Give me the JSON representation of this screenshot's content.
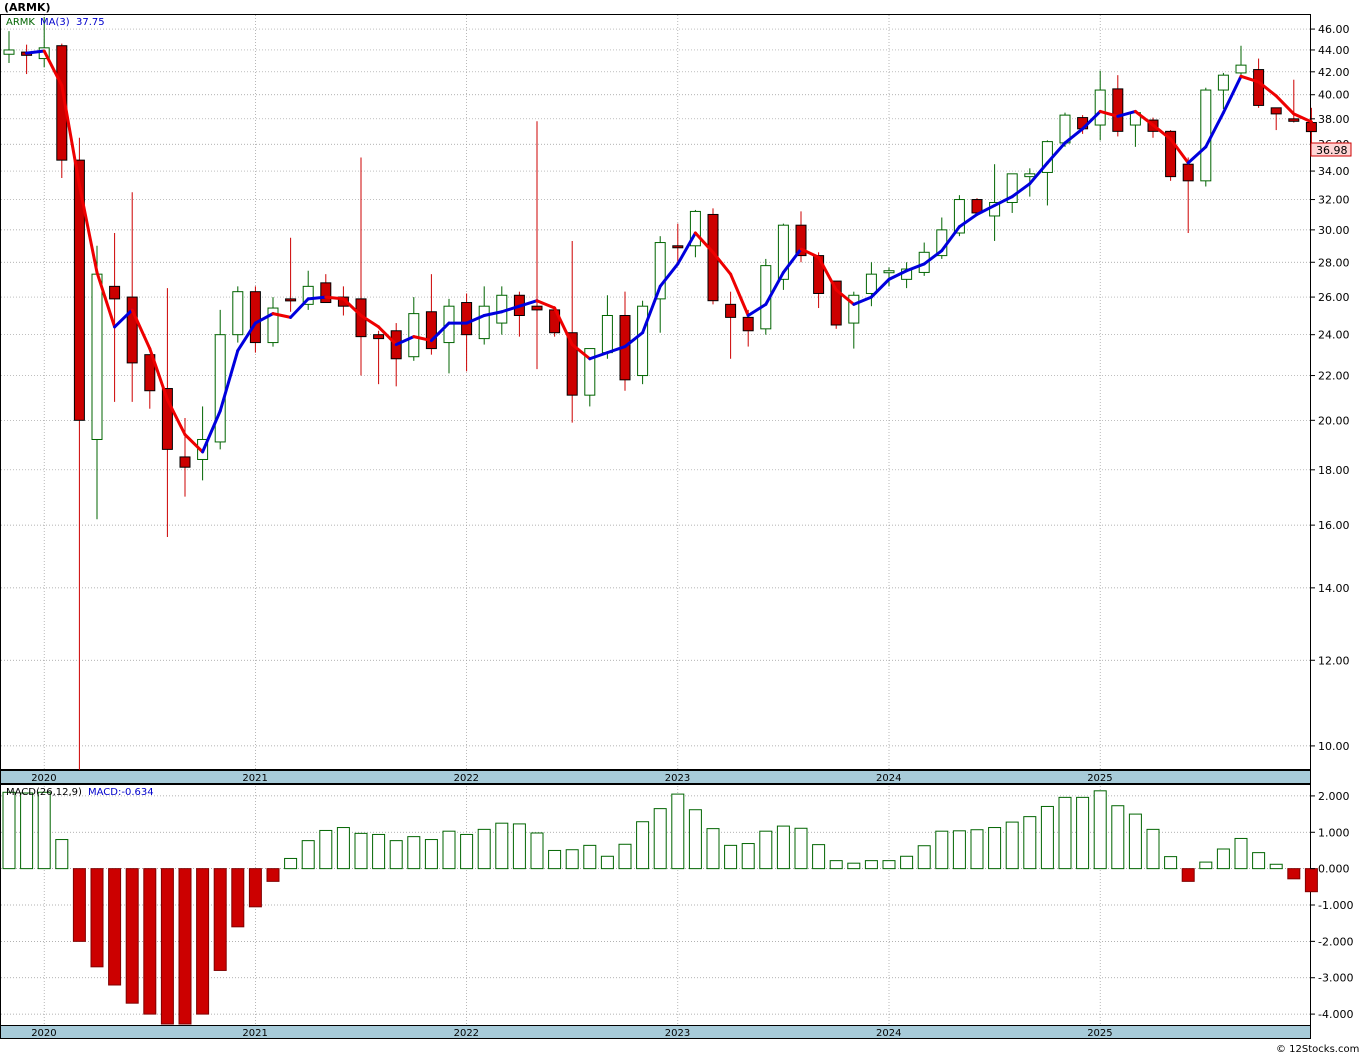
{
  "header": {
    "symbol_label": "(ARMK)",
    "legend_symbol": "ARMK",
    "legend_ma_label": "MA(3)",
    "legend_ma_value": "37.75",
    "last_price_tag": "36.98"
  },
  "macd_panel": {
    "label": "MACD(26,12,9)",
    "value_label": "MACD:-0.634"
  },
  "footer": {
    "credit": "© 12Stocks.com"
  },
  "colors": {
    "up": "#006400",
    "down": "#cc0000",
    "ma_up": "#0000dd",
    "ma_down": "#ee0000",
    "axis_band": "#a7cbd9",
    "grid": "#999999"
  },
  "chart_data": [
    {
      "type": "candlestick",
      "title": "ARMK",
      "scale": "log",
      "period": "monthly",
      "ylim": [
        9.5,
        47.5
      ],
      "y_ticks": [
        10,
        12,
        14,
        16,
        18,
        20,
        22,
        24,
        26,
        28,
        30,
        32,
        34,
        36,
        38,
        40,
        42,
        44,
        46
      ],
      "y_tick_labels": [
        "10.00",
        "12.00",
        "14.00",
        "16.00",
        "18.00",
        "20.00",
        "22.00",
        "24.00",
        "26.00",
        "28.00",
        "30.00",
        "32.00",
        "34.00",
        "36.00",
        "38.00",
        "40.00",
        "42.00",
        "44.00",
        "46.00"
      ],
      "x_labels": [
        "2020",
        "2021",
        "2022",
        "2023",
        "2024",
        "2025"
      ],
      "grid": true,
      "series": [
        {
          "name": "ARMK",
          "ohlc": [
            [
              43.6,
              45.8,
              42.8,
              44.0
            ],
            [
              43.8,
              44.5,
              41.8,
              43.5
            ],
            [
              43.2,
              47.2,
              42.4,
              44.2
            ],
            [
              44.4,
              44.6,
              33.5,
              34.8
            ],
            [
              34.8,
              36.5,
              9.5,
              20.0
            ],
            [
              19.2,
              29.0,
              16.2,
              27.3
            ],
            [
              26.6,
              29.8,
              20.8,
              25.9
            ],
            [
              26.0,
              32.5,
              20.8,
              22.6
            ],
            [
              23.0,
              23.0,
              20.5,
              21.3
            ],
            [
              21.4,
              26.5,
              15.6,
              18.8
            ],
            [
              18.5,
              20.1,
              17.0,
              18.1
            ],
            [
              18.4,
              20.6,
              17.6,
              19.2
            ],
            [
              19.1,
              25.3,
              18.8,
              24.0
            ],
            [
              24.0,
              26.6,
              23.6,
              26.3
            ],
            [
              26.3,
              26.6,
              23.1,
              23.6
            ],
            [
              23.6,
              26.0,
              23.4,
              25.4
            ],
            [
              25.9,
              29.5,
              25.2,
              25.8
            ],
            [
              25.6,
              27.5,
              25.3,
              26.6
            ],
            [
              26.8,
              27.3,
              25.7,
              25.7
            ],
            [
              26.0,
              26.6,
              25.0,
              25.5
            ],
            [
              25.9,
              35.0,
              22.0,
              23.9
            ],
            [
              24.0,
              24.2,
              21.6,
              23.8
            ],
            [
              24.2,
              24.6,
              21.5,
              22.8
            ],
            [
              22.9,
              26.0,
              22.7,
              25.1
            ],
            [
              25.2,
              27.3,
              23.0,
              23.3
            ],
            [
              23.6,
              25.9,
              22.1,
              25.5
            ],
            [
              25.7,
              26.2,
              22.2,
              24.0
            ],
            [
              23.8,
              26.6,
              23.5,
              25.5
            ],
            [
              24.6,
              26.6,
              24.0,
              26.1
            ],
            [
              26.1,
              26.3,
              23.9,
              25.0
            ],
            [
              25.5,
              37.8,
              22.3,
              25.3
            ],
            [
              25.3,
              25.5,
              23.9,
              24.1
            ],
            [
              24.1,
              29.3,
              19.9,
              21.1
            ],
            [
              21.1,
              23.3,
              20.6,
              23.3
            ],
            [
              23.1,
              26.1,
              22.8,
              25.0
            ],
            [
              25.0,
              26.3,
              21.3,
              21.8
            ],
            [
              22.0,
              25.8,
              21.6,
              25.5
            ],
            [
              25.9,
              29.6,
              24.1,
              29.2
            ],
            [
              29.0,
              30.4,
              28.0,
              28.9
            ],
            [
              29.0,
              31.3,
              28.3,
              31.2
            ],
            [
              31.0,
              31.4,
              25.6,
              25.8
            ],
            [
              25.6,
              26.3,
              22.8,
              24.9
            ],
            [
              24.9,
              25.3,
              23.4,
              24.2
            ],
            [
              24.3,
              28.2,
              24.0,
              27.8
            ],
            [
              27.0,
              30.4,
              26.4,
              30.3
            ],
            [
              30.3,
              31.2,
              28.0,
              28.4
            ],
            [
              28.4,
              28.6,
              25.4,
              26.2
            ],
            [
              26.9,
              26.9,
              24.3,
              24.5
            ],
            [
              24.6,
              26.3,
              23.3,
              26.1
            ],
            [
              26.2,
              28.0,
              25.5,
              27.3
            ],
            [
              27.4,
              27.7,
              26.6,
              27.5
            ],
            [
              27.0,
              28.0,
              26.5,
              27.6
            ],
            [
              27.4,
              29.2,
              27.2,
              28.6
            ],
            [
              28.4,
              30.8,
              28.2,
              30.0
            ],
            [
              29.8,
              32.3,
              29.6,
              32.0
            ],
            [
              32.0,
              32.1,
              31.0,
              31.1
            ],
            [
              30.9,
              34.5,
              29.3,
              31.8
            ],
            [
              31.8,
              33.8,
              31.1,
              33.8
            ],
            [
              33.6,
              34.2,
              32.2,
              33.8
            ],
            [
              33.9,
              36.3,
              31.6,
              36.2
            ],
            [
              36.1,
              38.5,
              35.8,
              38.3
            ],
            [
              38.1,
              38.3,
              36.8,
              37.2
            ],
            [
              37.5,
              42.1,
              36.3,
              40.4
            ],
            [
              40.5,
              41.7,
              36.6,
              37.0
            ],
            [
              37.5,
              38.6,
              35.8,
              38.5
            ],
            [
              37.9,
              38.1,
              36.5,
              37.0
            ],
            [
              37.0,
              37.1,
              33.3,
              33.6
            ],
            [
              34.5,
              35.0,
              29.8,
              33.3
            ],
            [
              33.3,
              40.6,
              32.9,
              40.4
            ],
            [
              40.4,
              41.9,
              38.8,
              41.7
            ],
            [
              41.9,
              44.4,
              41.6,
              42.6
            ],
            [
              42.2,
              43.2,
              38.9,
              39.1
            ],
            [
              38.9,
              38.9,
              37.1,
              38.4
            ],
            [
              38.0,
              41.3,
              37.7,
              37.8
            ],
            [
              37.7,
              38.9,
              35.1,
              36.98
            ]
          ]
        },
        {
          "name": "MA(3)",
          "values": [
            null,
            43.7,
            43.9,
            40.8,
            33.0,
            27.4,
            24.4,
            25.3,
            23.3,
            20.9,
            19.4,
            18.7,
            20.4,
            23.2,
            24.6,
            25.1,
            24.9,
            25.9,
            26.0,
            25.9,
            25.0,
            24.4,
            23.5,
            23.9,
            23.7,
            24.6,
            24.6,
            25.0,
            25.2,
            25.5,
            25.8,
            25.4,
            23.5,
            22.8,
            23.1,
            23.4,
            24.1,
            26.6,
            27.9,
            29.8,
            28.6,
            27.3,
            25.0,
            25.6,
            27.4,
            28.8,
            28.3,
            26.4,
            25.6,
            26.0,
            27.0,
            27.5,
            27.9,
            28.7,
            30.2,
            31.0,
            31.6,
            32.2,
            33.1,
            34.6,
            36.1,
            37.2,
            38.6,
            38.2,
            38.6,
            37.5,
            36.4,
            34.6,
            35.8,
            38.5,
            41.6,
            41.1,
            39.9,
            38.4,
            37.75
          ]
        }
      ]
    },
    {
      "type": "bar",
      "title": "MACD(26,12,9)",
      "ylim": [
        -4.3,
        2.3
      ],
      "y_ticks": [
        -4,
        -3,
        -2,
        -1,
        0,
        1,
        2
      ],
      "y_tick_labels": [
        "-4.000",
        "-3.000",
        "-2.000",
        "-1.000",
        "0.000",
        "1.000",
        "2.000"
      ],
      "x_labels": [
        "2020",
        "2021",
        "2022",
        "2023",
        "2024",
        "2025"
      ],
      "series": [
        {
          "name": "MACD",
          "values": [
            2.1,
            2.08,
            2.1,
            0.8,
            -2.0,
            -2.7,
            -3.2,
            -3.7,
            -4.0,
            -4.3,
            -4.3,
            -4.0,
            -2.8,
            -1.6,
            -1.05,
            -0.35,
            0.28,
            0.77,
            1.05,
            1.13,
            0.97,
            0.94,
            0.77,
            0.88,
            0.8,
            1.03,
            0.94,
            1.08,
            1.25,
            1.23,
            0.98,
            0.5,
            0.52,
            0.64,
            0.34,
            0.67,
            1.29,
            1.65,
            2.05,
            1.62,
            1.1,
            0.64,
            0.69,
            1.03,
            1.17,
            1.11,
            0.66,
            0.22,
            0.15,
            0.22,
            0.22,
            0.34,
            0.63,
            1.03,
            1.04,
            1.07,
            1.13,
            1.28,
            1.43,
            1.71,
            1.96,
            1.96,
            2.14,
            1.73,
            1.5,
            1.08,
            0.33,
            -0.35,
            0.18,
            0.54,
            0.83,
            0.44,
            0.12,
            -0.28,
            -0.634
          ]
        }
      ]
    }
  ]
}
